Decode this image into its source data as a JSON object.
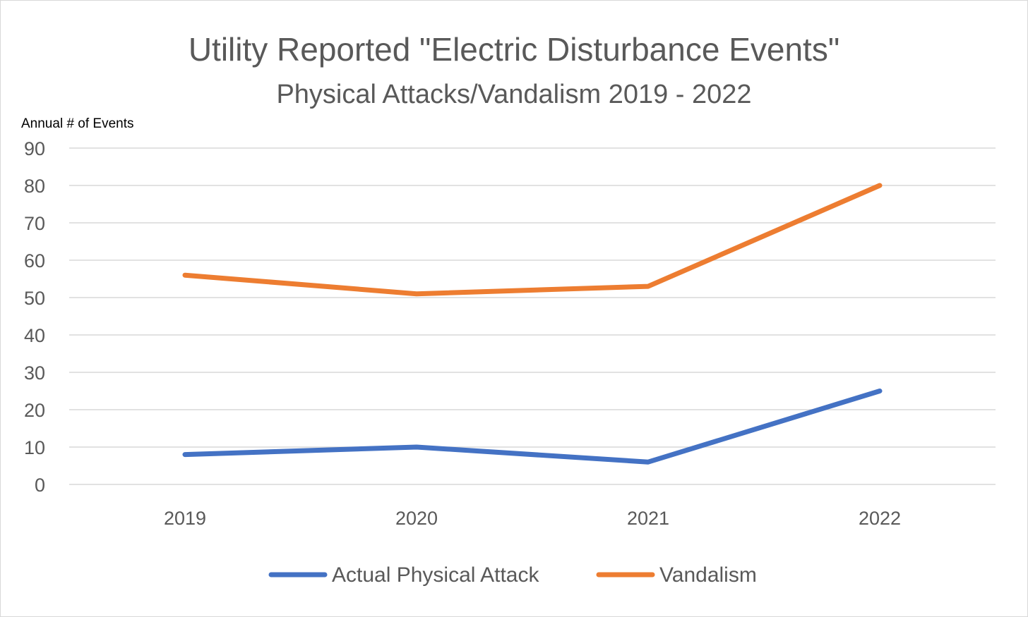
{
  "chart_data": {
    "type": "line",
    "title": "Utility Reported \"Electric Disturbance Events\"",
    "subtitle": "Physical Attacks/Vandalism 2019 - 2022",
    "xlabel": "",
    "ylabel": "Annual # of Events",
    "categories": [
      "2019",
      "2020",
      "2021",
      "2022"
    ],
    "ylim": [
      0,
      90
    ],
    "yticks": [
      0,
      10,
      20,
      30,
      40,
      50,
      60,
      70,
      80,
      90
    ],
    "grid": true,
    "legend_position": "bottom",
    "series": [
      {
        "name": "Actual Physical Attack",
        "color": "#4472C4",
        "values": [
          8,
          10,
          6,
          25
        ]
      },
      {
        "name": "Vandalism",
        "color": "#ED7D31",
        "values": [
          56,
          51,
          53,
          80
        ]
      }
    ]
  }
}
